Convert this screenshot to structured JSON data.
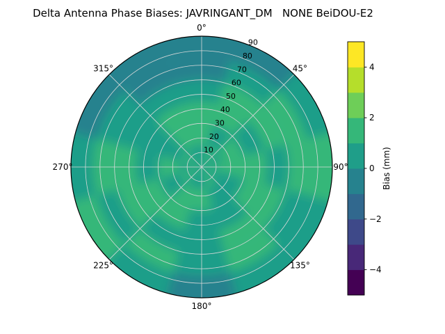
{
  "title": "Delta Antenna Phase Biases: JAVRINGANT_DM   NONE BeiDOU-E2",
  "chart_data": {
    "type": "heatmap",
    "projection": "polar",
    "title": "Delta Antenna Phase Biases: JAVRINGANT_DM   NONE BeiDOU-E2",
    "theta_zero_location": "N",
    "theta_direction": "clockwise",
    "theta_tick_labels": [
      "0°",
      "45°",
      "90°",
      "135°",
      "180°",
      "225°",
      "270°",
      "315°"
    ],
    "theta_tick_angles_deg": [
      0,
      45,
      90,
      135,
      180,
      225,
      270,
      315
    ],
    "r_range": [
      0,
      90
    ],
    "r_tick_labels": [
      "10",
      "20",
      "30",
      "40",
      "50",
      "60",
      "70",
      "80",
      "90"
    ],
    "r_label_angle_deg": 22.5,
    "grid_on": true,
    "colorbar": {
      "label": "Bias (mm)",
      "range": [
        -5,
        5
      ],
      "level_step": 1,
      "tick_values": [
        4,
        2,
        0,
        -2,
        -4
      ],
      "tick_labels": [
        "4",
        "2",
        "0",
        "−2",
        "−4"
      ],
      "colors": [
        "#440154",
        "#482878",
        "#3e4989",
        "#31688e",
        "#26828e",
        "#1f9e89",
        "#35b779",
        "#6ece58",
        "#b5de2b",
        "#fde725"
      ]
    },
    "observed_bias_range_mm": [
      -1,
      2
    ],
    "values_grid": {
      "description": "Approximate phase bias (mm) estimated from the contour colors, sampled on elevation rings (zenith to horizon) by azimuth bins",
      "elevation_ring_ranges_deg": [
        [
          90,
          75
        ],
        [
          75,
          60
        ],
        [
          60,
          45
        ],
        [
          45,
          30
        ],
        [
          30,
          15
        ],
        [
          15,
          0
        ]
      ],
      "azimuth_bin_centers_deg": [
        0,
        30,
        60,
        90,
        120,
        150,
        180,
        210,
        240,
        270,
        300,
        330
      ],
      "bias_mm": [
        [
          0.5,
          1.5,
          0.5,
          1.5,
          0.5,
          1.5,
          0.5,
          0.5,
          1.5,
          0.5,
          1.5,
          0.5
        ],
        [
          1.5,
          0.5,
          1.5,
          1.5,
          0.5,
          0.5,
          1.5,
          1.5,
          0.5,
          1.5,
          0.5,
          1.5
        ],
        [
          1.5,
          1.5,
          0.5,
          1.5,
          1.5,
          0.5,
          0.5,
          1.5,
          1.5,
          0.5,
          0.5,
          1.5
        ],
        [
          0.5,
          1.5,
          1.5,
          0.5,
          1.5,
          1.5,
          0.5,
          0.5,
          1.5,
          1.5,
          0.5,
          0.5
        ],
        [
          -0.5,
          0.5,
          1.5,
          1.5,
          0.5,
          1.5,
          0.5,
          1.5,
          0.5,
          1.5,
          0.5,
          -0.5
        ],
        [
          -0.5,
          -0.5,
          0.5,
          1.5,
          0.5,
          0.5,
          -0.5,
          0.5,
          1.5,
          0.5,
          -0.5,
          -0.5
        ]
      ]
    }
  }
}
